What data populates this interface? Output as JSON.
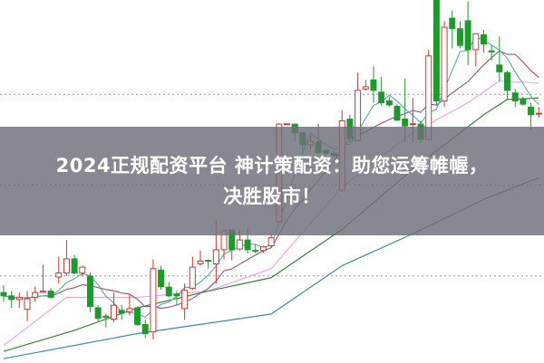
{
  "banner": {
    "line1": "2024正规配资平台 神计策配资：助您运筹帷幄，",
    "line2": "决胜股市！"
  },
  "chart_data": {
    "type": "candlestick",
    "title": "",
    "xlabel": "",
    "ylabel": "",
    "ylim": [
      0,
      100
    ],
    "grid": true,
    "colors": {
      "up": "#d8322e",
      "down": "#1e9a2c",
      "ma_short": "#56a9b3",
      "ma_mid": "#8e4f80",
      "ma_pink": "#e8a6e8",
      "ma_green": "#3d7d3d",
      "ma_long": "#3a8c9c",
      "grid": "#999999"
    },
    "candles": [
      [
        19.4,
        18.5,
        21.4,
        16.9
      ],
      [
        18.5,
        17.5,
        19.8,
        15.2
      ],
      [
        17.5,
        18.1,
        19.4,
        15.2
      ],
      [
        14.8,
        17.7,
        19.8,
        11.5
      ],
      [
        18.1,
        19.4,
        21.0,
        16.9
      ],
      [
        19.5,
        19.8,
        27.0,
        19.4
      ],
      [
        19.8,
        18.1,
        20.6,
        17.7
      ],
      [
        23.7,
        24.8,
        29.3,
        21.9
      ],
      [
        24.8,
        28.7,
        33.9,
        23.9
      ],
      [
        28.7,
        24.8,
        29.8,
        24.4
      ],
      [
        24.8,
        26.4,
        26.8,
        23.9
      ],
      [
        23.9,
        15.6,
        24.8,
        14.0
      ],
      [
        15.2,
        12.3,
        16.0,
        11.5
      ],
      [
        12.9,
        12.6,
        13.5,
        9.8
      ],
      [
        12.1,
        15.9,
        19.4,
        11.2
      ],
      [
        14.5,
        13.7,
        16.0,
        11.9
      ],
      [
        14.2,
        15.0,
        19.0,
        13.1
      ],
      [
        15.2,
        10.6,
        15.6,
        10.2
      ],
      [
        10.6,
        8.1,
        11.9,
        6.9
      ],
      [
        8.6,
        26.0,
        28.5,
        6.5
      ],
      [
        25.6,
        21.0,
        26.8,
        20.2
      ],
      [
        20.9,
        18.5,
        22.3,
        18.1
      ],
      [
        19.0,
        18.5,
        19.8,
        16.0
      ],
      [
        15.0,
        20.0,
        21.9,
        11.9
      ],
      [
        20.6,
        26.4,
        29.3,
        20.2
      ],
      [
        27.3,
        28.1,
        31.0,
        26.8
      ],
      [
        28.3,
        28.1,
        28.5,
        26.0
      ],
      [
        27.3,
        31.2,
        39.3,
        21.9
      ],
      [
        31.2,
        36.4,
        36.8,
        28.5
      ],
      [
        36.7,
        31.2,
        36.8,
        28.3
      ],
      [
        31.4,
        33.9,
        36.8,
        31.0
      ],
      [
        33.9,
        31.2,
        37.2,
        30.2
      ],
      [
        31.0,
        30.8,
        32.7,
        30.2
      ],
      [
        31.0,
        32.0,
        32.3,
        30.3
      ],
      [
        32.3,
        34.5,
        35.6,
        31.8
      ],
      [
        38.9,
        65.8,
        66.1,
        38.5
      ],
      [
        65.8,
        65.9,
        65.9,
        65.8
      ],
      [
        65.8,
        63.4,
        65.9,
        60.9
      ],
      [
        63.4,
        60.1,
        63.8,
        58.0
      ],
      [
        60.1,
        61.1,
        62.6,
        58.9
      ],
      [
        60.9,
        58.0,
        65.9,
        57.6
      ],
      [
        58.5,
        57.8,
        59.2,
        57.0
      ],
      [
        57.8,
        57.2,
        58.5,
        56.5
      ],
      [
        47.6,
        66.7,
        69.7,
        47.2
      ],
      [
        67.2,
        61.8,
        68.4,
        60.9
      ],
      [
        61.3,
        75.1,
        80.0,
        60.9
      ],
      [
        75.5,
        76.1,
        78.0,
        75.1
      ],
      [
        78.0,
        75.1,
        81.7,
        71.7
      ],
      [
        74.6,
        71.7,
        78.8,
        70.9
      ],
      [
        72.2,
        71.1,
        73.4,
        70.5
      ],
      [
        70.7,
        66.9,
        71.3,
        66.7
      ],
      [
        67.2,
        65.3,
        78.4,
        60.9
      ],
      [
        65.8,
        65.9,
        73.0,
        60.9
      ],
      [
        65.8,
        61.6,
        66.7,
        60.9
      ],
      [
        61.6,
        84.6,
        86.3,
        61.3
      ],
      [
        100,
        72.2,
        100,
        70.9
      ],
      [
        72.2,
        92.5,
        94.2,
        70.5
      ],
      [
        95.0,
        92.1,
        97.1,
        86.7
      ],
      [
        92.1,
        87.5,
        94.2,
        86.7
      ],
      [
        94.3,
        86.3,
        99.6,
        82.1
      ],
      [
        86.3,
        90.7,
        90.9,
        81.7
      ],
      [
        90.4,
        87.9,
        91.7,
        85.5
      ],
      [
        86.0,
        85.7,
        87.5,
        83.4
      ],
      [
        82.1,
        80.2,
        90.0,
        77.6
      ],
      [
        80.0,
        75.1,
        80.5,
        72.6
      ],
      [
        74.4,
        72.2,
        75.5,
        70.5
      ],
      [
        72.6,
        71.3,
        73.4,
        70.9
      ],
      [
        70.5,
        68.4,
        71.7,
        64.3
      ],
      [
        68.6,
        68.8,
        70.5,
        67.6
      ]
    ],
    "lines": [
      {
        "color_key": "ma_pink",
        "points": [
          [
            0,
            4.8
          ],
          [
            8,
            18.1
          ],
          [
            17,
            18.1
          ],
          [
            26,
            19.8
          ],
          [
            34,
            26.0
          ],
          [
            43,
            48.5
          ],
          [
            52,
            63.4
          ],
          [
            59,
            71.7
          ],
          [
            63,
            77.7
          ],
          [
            68,
            77.1
          ]
        ]
      },
      {
        "color_key": "ma_green",
        "points": [
          [
            0,
            3.2
          ],
          [
            9,
            9.0
          ],
          [
            17,
            15.2
          ],
          [
            26,
            19.8
          ],
          [
            34,
            23.5
          ],
          [
            43,
            36.8
          ],
          [
            52,
            53.4
          ],
          [
            61,
            68.4
          ],
          [
            64,
            72.6
          ],
          [
            68,
            73.0
          ]
        ]
      },
      {
        "color_key": "ma_long",
        "points": [
          [
            0,
            1.2
          ],
          [
            17,
            8.1
          ],
          [
            34,
            13.5
          ],
          [
            43,
            26.8
          ],
          [
            52,
            35.6
          ],
          [
            61,
            45.1
          ],
          [
            68,
            51.0
          ]
        ]
      }
    ],
    "gridlines": [
      74,
      49,
      24
    ]
  }
}
